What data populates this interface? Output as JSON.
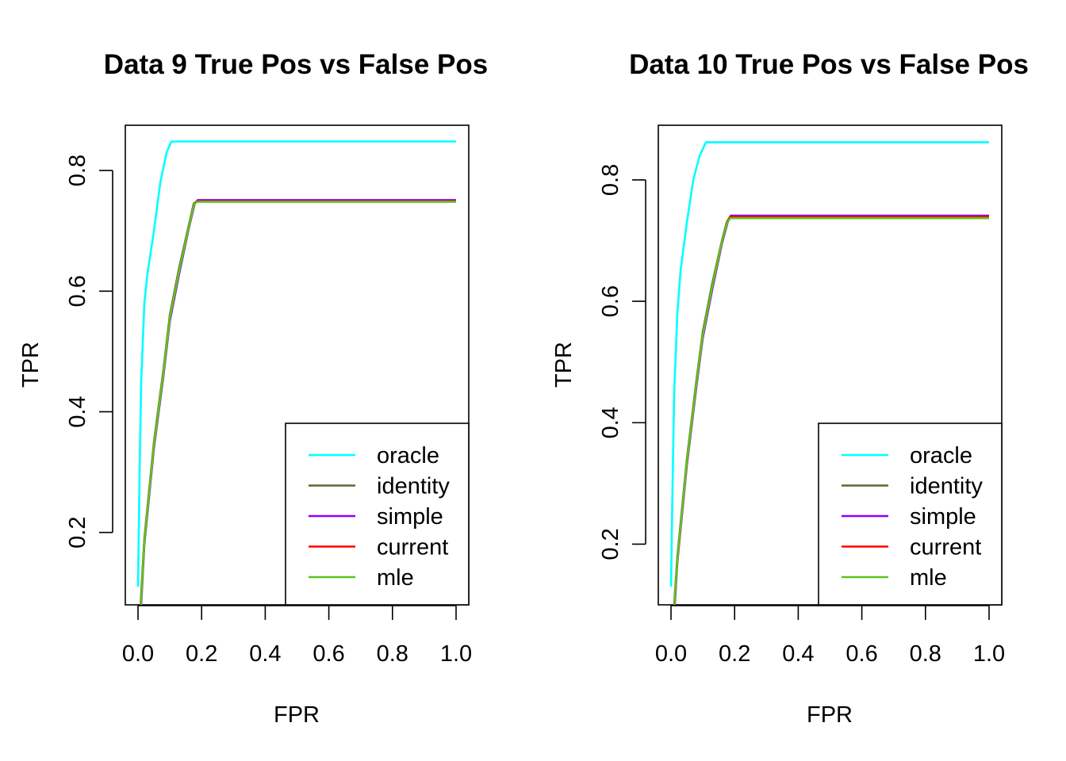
{
  "chart_data": [
    {
      "type": "line",
      "title": "Data 9 True Pos vs False Pos",
      "xlabel": "FPR",
      "ylabel": "TPR",
      "xlim": [
        0.0,
        1.0
      ],
      "ylim": [
        0.08,
        0.875
      ],
      "xticks": [
        "0.0",
        "0.2",
        "0.4",
        "0.6",
        "0.8",
        "1.0"
      ],
      "yticks": [
        "0.2",
        "0.4",
        "0.6",
        "0.8"
      ],
      "legend_position": "bottom-right",
      "series": [
        {
          "name": "oracle",
          "color": "#00FFFF",
          "x": [
            0.0,
            0.005,
            0.01,
            0.02,
            0.03,
            0.05,
            0.07,
            0.09,
            0.105,
            1.0
          ],
          "y": [
            0.11,
            0.3,
            0.45,
            0.58,
            0.63,
            0.7,
            0.78,
            0.83,
            0.848,
            0.848
          ]
        },
        {
          "name": "identity",
          "color": "#556B2F",
          "x": [
            0.008,
            0.02,
            0.05,
            0.08,
            0.1,
            0.13,
            0.16,
            0.175,
            0.185,
            1.0
          ],
          "y": [
            0.08,
            0.19,
            0.35,
            0.47,
            0.56,
            0.64,
            0.71,
            0.745,
            0.749,
            0.749
          ]
        },
        {
          "name": "simple",
          "color": "#8B00FF",
          "x": [
            0.01,
            0.02,
            0.05,
            0.08,
            0.1,
            0.13,
            0.16,
            0.178,
            0.188,
            1.0
          ],
          "y": [
            0.08,
            0.18,
            0.34,
            0.46,
            0.55,
            0.63,
            0.705,
            0.745,
            0.751,
            0.751
          ]
        },
        {
          "name": "current",
          "color": "#FF0000",
          "x": [
            0.009,
            0.02,
            0.05,
            0.08,
            0.1,
            0.13,
            0.16,
            0.176,
            0.186,
            1.0
          ],
          "y": [
            0.08,
            0.185,
            0.345,
            0.465,
            0.555,
            0.635,
            0.707,
            0.745,
            0.749,
            0.749
          ]
        },
        {
          "name": "mle",
          "color": "#5DC41F",
          "x": [
            0.009,
            0.02,
            0.05,
            0.08,
            0.1,
            0.13,
            0.16,
            0.176,
            0.186,
            1.0
          ],
          "y": [
            0.08,
            0.185,
            0.345,
            0.465,
            0.555,
            0.635,
            0.707,
            0.744,
            0.748,
            0.748
          ]
        }
      ]
    },
    {
      "type": "line",
      "title": "Data 10 True Pos vs False Pos",
      "xlabel": "FPR",
      "ylabel": "TPR",
      "xlim": [
        0.0,
        1.0
      ],
      "ylim": [
        0.1,
        0.89
      ],
      "xticks": [
        "0.0",
        "0.2",
        "0.4",
        "0.6",
        "0.8",
        "1.0"
      ],
      "yticks": [
        "0.2",
        "0.4",
        "0.6",
        "0.8"
      ],
      "legend_position": "bottom-right",
      "series": [
        {
          "name": "oracle",
          "color": "#00FFFF",
          "x": [
            0.0,
            0.005,
            0.01,
            0.02,
            0.03,
            0.05,
            0.07,
            0.09,
            0.11,
            1.0
          ],
          "y": [
            0.13,
            0.3,
            0.45,
            0.58,
            0.65,
            0.73,
            0.8,
            0.84,
            0.862,
            0.862
          ]
        },
        {
          "name": "identity",
          "color": "#556B2F",
          "x": [
            0.01,
            0.02,
            0.05,
            0.08,
            0.1,
            0.13,
            0.16,
            0.175,
            0.185,
            1.0
          ],
          "y": [
            0.1,
            0.18,
            0.34,
            0.47,
            0.55,
            0.63,
            0.7,
            0.73,
            0.739,
            0.739
          ]
        },
        {
          "name": "simple",
          "color": "#8B00FF",
          "x": [
            0.012,
            0.02,
            0.05,
            0.08,
            0.1,
            0.13,
            0.16,
            0.178,
            0.188,
            1.0
          ],
          "y": [
            0.1,
            0.17,
            0.33,
            0.46,
            0.54,
            0.62,
            0.695,
            0.73,
            0.741,
            0.741
          ]
        },
        {
          "name": "current",
          "color": "#FF0000",
          "x": [
            0.011,
            0.02,
            0.05,
            0.08,
            0.1,
            0.13,
            0.16,
            0.176,
            0.186,
            1.0
          ],
          "y": [
            0.1,
            0.175,
            0.335,
            0.465,
            0.545,
            0.625,
            0.698,
            0.73,
            0.739,
            0.739
          ]
        },
        {
          "name": "mle",
          "color": "#5DC41F",
          "x": [
            0.011,
            0.02,
            0.05,
            0.08,
            0.1,
            0.13,
            0.16,
            0.176,
            0.186,
            1.0
          ],
          "y": [
            0.1,
            0.175,
            0.335,
            0.465,
            0.545,
            0.625,
            0.698,
            0.729,
            0.737,
            0.737
          ]
        }
      ]
    }
  ]
}
